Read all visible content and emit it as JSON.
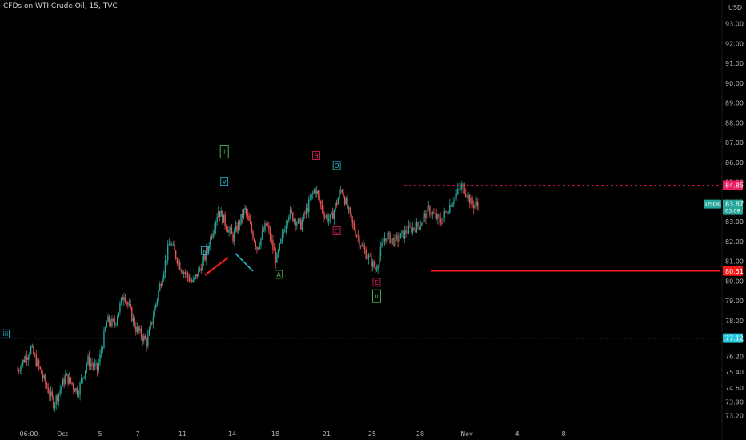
{
  "title": "CFDs on WTI Crude Oil, 15, TVC",
  "colors": {
    "bg": "#000000",
    "up": "#26a69a",
    "down": "#ef5350",
    "teal": "#26c6da",
    "magenta": "#e91e63",
    "green": "#4caf50",
    "red": "#ff1a1a"
  },
  "chart_data": {
    "type": "candlestick",
    "currency": "USD",
    "ylim": [
      72.5,
      94.2
    ],
    "yticks": [
      "73.20",
      "73.90",
      "74.60",
      "75.40",
      "76.20",
      "77.00",
      "78.00",
      "79.00",
      "80.00",
      "81.00",
      "82.00",
      "83.00",
      "84.00",
      "85.00",
      "86.00",
      "87.00",
      "88.00",
      "89.00",
      "90.00",
      "91.00",
      "92.00",
      "93.00"
    ],
    "xticks": [
      "06:00",
      "Oct",
      "5",
      "7",
      "11",
      "14",
      "18",
      "21",
      "25",
      "28",
      "Nov",
      "4",
      "8"
    ],
    "price_path_x": [
      0.0,
      0.55,
      0.96,
      1.5,
      2.0,
      2.5,
      2.9,
      3.3,
      3.7,
      4.0,
      4.4,
      4.9,
      5.35,
      5.8,
      6.3,
      6.75,
      7.25,
      7.75,
      8.3,
      8.9,
      9.4,
      9.9,
      10.3,
      10.7,
      11.2,
      11.7,
      12.3,
      12.7,
      12.95,
      13.4,
      13.8,
      14.3,
      14.8,
      15.2,
      15.6,
      16.2,
      16.6,
      17.0,
      17.5,
      17.9,
      18.4,
      18.8,
      19.1
    ],
    "price_path_y": [
      75.5,
      76.6,
      75.4,
      73.8,
      75.2,
      74.4,
      76.0,
      75.5,
      78.0,
      77.8,
      79.4,
      77.6,
      76.9,
      79.3,
      82.0,
      80.7,
      79.9,
      81.2,
      83.6,
      82.2,
      83.6,
      81.7,
      82.9,
      81.0,
      83.5,
      82.8,
      84.7,
      83.3,
      83.1,
      84.7,
      83.0,
      81.6,
      80.6,
      82.3,
      82.0,
      82.6,
      82.8,
      83.6,
      83.0,
      83.9,
      84.85,
      83.87,
      83.8
    ],
    "price_path_note_keys": [],
    "current_price": {
      "label": "USOIL",
      "value": "83.87",
      "countdown": "03:08"
    },
    "levels": [
      {
        "value": 84.85,
        "label": "84.85",
        "style": "dashed",
        "color": "#e91e63"
      },
      {
        "value": 80.51,
        "label": "80.51",
        "style": "solid",
        "color": "#ff1a1a"
      },
      {
        "value": 77.12,
        "label": "77.12",
        "style": "dashed",
        "color": "#26c6da"
      }
    ],
    "wave_labels": [
      {
        "text": "iii",
        "x": -0.5,
        "y": 77.3,
        "color": "#26c6da"
      },
      {
        "text": "i",
        "x": 8.55,
        "y": 86.5,
        "color": "#4caf50",
        "boxed": true
      },
      {
        "text": "v",
        "x": 8.55,
        "y": 85.0,
        "color": "#26c6da"
      },
      {
        "text": "iv",
        "x": 7.75,
        "y": 81.5,
        "color": "#26c6da"
      },
      {
        "text": "A",
        "x": 10.8,
        "y": 80.3,
        "color": "#4caf50"
      },
      {
        "text": "B",
        "x": 12.35,
        "y": 86.3,
        "color": "#e91e63"
      },
      {
        "text": "C",
        "x": 13.2,
        "y": 82.5,
        "color": "#e91e63"
      },
      {
        "text": "D",
        "x": 13.2,
        "y": 85.8,
        "color": "#26c6da"
      },
      {
        "text": "E",
        "x": 14.85,
        "y": 79.9,
        "color": "#e91e63"
      },
      {
        "text": "ii",
        "x": 14.85,
        "y": 79.2,
        "color": "#4caf50",
        "boxed": true
      }
    ]
  }
}
